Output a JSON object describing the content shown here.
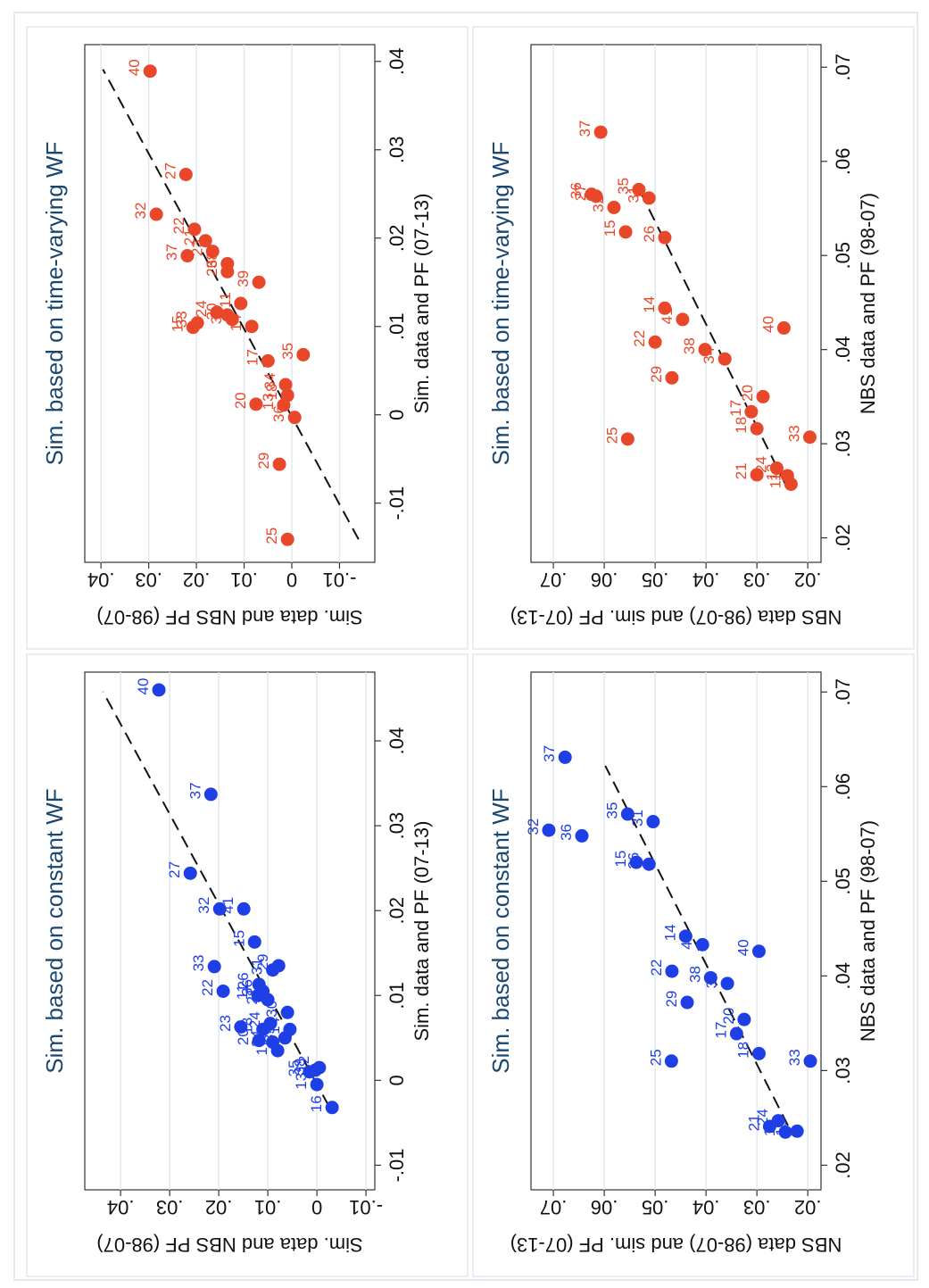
{
  "chart_data": [
    {
      "type": "scatter",
      "title": "Sim. based on constant WF",
      "x_label": "Sim. data and PF (07-13)",
      "y_label": "Sim. data and NBS PF (98-07)",
      "color": "#1f3fe6",
      "xlim": [
        -0.0129,
        0.0481
      ],
      "ylim": [
        -0.0118,
        0.0473
      ],
      "xticks": [
        {
          "value": -0.01,
          "label": "-.01"
        },
        0,
        {
          "value": 0.01,
          "label": ".01"
        },
        {
          "value": 0.02,
          "label": ".02"
        },
        {
          "value": 0.03,
          "label": ".03"
        },
        {
          "value": 0.04,
          "label": ".04"
        }
      ],
      "yticks": [
        {
          "value": -0.01,
          "label": "-.01"
        },
        0,
        {
          "value": 0.01,
          "label": ".01"
        },
        {
          "value": 0.02,
          "label": ".02"
        },
        {
          "value": 0.03,
          "label": ".03"
        },
        {
          "value": 0.04,
          "label": ".04"
        }
      ],
      "grid": true,
      "point_labels": [
        "40",
        "37",
        "27",
        "32",
        "41",
        "15",
        "33",
        "22",
        "26",
        "23",
        "31",
        "29",
        "36",
        "11",
        "20",
        "18",
        "24",
        "34",
        "17",
        "39",
        "14",
        "30",
        "21",
        "35",
        "38",
        "13",
        "12",
        "16"
      ],
      "x": [
        0.046,
        0.0337,
        0.0244,
        0.0202,
        0.0202,
        0.0163,
        0.0134,
        0.0105,
        0.0113,
        0.0063,
        0.013,
        0.0135,
        0.0105,
        0.01,
        0.0047,
        0.006,
        0.0067,
        0.0045,
        0.0035,
        0.005,
        0.006,
        0.008,
        0.0095,
        0.001,
        0.0012,
        -0.0005,
        0.0015,
        -0.0032
      ],
      "values": [
        0.0322,
        0.0216,
        0.0258,
        0.0198,
        0.0149,
        0.0127,
        0.0209,
        0.0191,
        0.0118,
        0.0155,
        0.009,
        0.0078,
        0.011,
        0.012,
        0.0118,
        0.011,
        0.0095,
        0.009,
        0.008,
        0.0065,
        0.0055,
        0.006,
        0.01,
        0.0015,
        0.0003,
        0.0,
        -0.0005,
        -0.0031
      ],
      "fit_x": [
        -0.003,
        0.0458
      ],
      "fit_y": [
        -0.0024,
        0.0436
      ]
    },
    {
      "type": "scatter",
      "title": "Sim. based on time-varying WF",
      "x_label": "Sim. data and PF (07-13)",
      "y_label": "Sim. data and NBS PF (98-07)",
      "color": "#e8472a",
      "xlim": [
        -0.0167,
        0.0419
      ],
      "ylim": [
        -0.0174,
        0.0434
      ],
      "xticks": [
        {
          "value": -0.01,
          "label": "-.01"
        },
        0,
        {
          "value": 0.01,
          "label": ".01"
        },
        {
          "value": 0.02,
          "label": ".02"
        },
        {
          "value": 0.03,
          "label": ".03"
        },
        {
          "value": 0.04,
          "label": ".04"
        }
      ],
      "yticks": [
        {
          "value": -0.01,
          "label": "-.01"
        },
        0,
        {
          "value": 0.01,
          "label": ".01"
        },
        {
          "value": 0.02,
          "label": ".02"
        },
        {
          "value": 0.03,
          "label": ".03"
        },
        {
          "value": 0.04,
          "label": ".04"
        }
      ],
      "grid": true,
      "point_labels": [
        "40",
        "27",
        "32",
        "22",
        "37",
        "21",
        "23",
        "38",
        "26",
        "39",
        "11",
        "24",
        "15",
        "33",
        "30",
        "31",
        "14",
        "17",
        "35",
        "20",
        "34",
        "18",
        "13",
        "36",
        "29",
        "25"
      ],
      "x": [
        0.0389,
        0.0272,
        0.0227,
        0.021,
        0.018,
        0.0197,
        0.0185,
        0.0171,
        0.0162,
        0.015,
        0.0126,
        0.0116,
        0.0099,
        0.0104,
        0.0113,
        0.0108,
        0.01,
        0.0061,
        0.0068,
        0.0012,
        0.0034,
        0.0022,
        0.0011,
        -0.0003,
        -0.0056,
        -0.0141
      ],
      "values": [
        0.0297,
        0.0222,
        0.0284,
        0.0204,
        0.0219,
        0.0181,
        0.0166,
        0.0135,
        0.0135,
        0.0069,
        0.0107,
        0.0157,
        0.0207,
        0.0198,
        0.0135,
        0.0125,
        0.0084,
        0.005,
        -0.0024,
        0.0075,
        0.0013,
        0.0009,
        0.0017,
        -0.0006,
        0.0026,
        0.0009
      ],
      "fit_x": [
        -0.0141,
        0.0391
      ],
      "fit_y": [
        -0.014,
        0.0396
      ]
    },
    {
      "type": "scatter",
      "title": "Sim. based on constant WF",
      "x_label": "NBS data and PF (98-07)",
      "y_label": "NBS data (98-07) and sim. PF (07-13)",
      "color": "#1f3fe6",
      "xlim": [
        0.0174,
        0.0721
      ],
      "ylim": [
        0.0174,
        0.0744
      ],
      "xticks": [
        {
          "value": 0.02,
          "label": ".02"
        },
        {
          "value": 0.03,
          "label": ".03"
        },
        {
          "value": 0.04,
          "label": ".04"
        },
        {
          "value": 0.05,
          "label": ".05"
        },
        {
          "value": 0.06,
          "label": ".06"
        },
        {
          "value": 0.07,
          "label": ".07"
        }
      ],
      "yticks": [
        {
          "value": 0.02,
          "label": ".02"
        },
        {
          "value": 0.03,
          "label": ".03"
        },
        {
          "value": 0.04,
          "label": ".04"
        },
        {
          "value": 0.05,
          "label": ".05"
        },
        {
          "value": 0.06,
          "label": ".06"
        },
        {
          "value": 0.07,
          "label": ".07"
        }
      ],
      "grid": true,
      "point_labels": [
        "37",
        "32",
        "36",
        "35",
        "31",
        "15",
        "26",
        "14",
        "41",
        "22",
        "40",
        "29",
        "38",
        "34",
        "20",
        "17",
        "18",
        "25",
        "33",
        "21",
        "24",
        "11",
        "13"
      ],
      "x": [
        0.0631,
        0.0554,
        0.0548,
        0.0571,
        0.0563,
        0.052,
        0.0518,
        0.0442,
        0.0433,
        0.0405,
        0.0426,
        0.0372,
        0.0398,
        0.0392,
        0.0354,
        0.0339,
        0.0318,
        0.031,
        0.031,
        0.0241,
        0.0247,
        0.0235,
        0.0236
      ],
      "values": [
        0.0677,
        0.0709,
        0.0644,
        0.0554,
        0.0504,
        0.0537,
        0.0512,
        0.044,
        0.0407,
        0.0467,
        0.0296,
        0.0437,
        0.0391,
        0.0358,
        0.0325,
        0.034,
        0.0296,
        0.0468,
        0.0195,
        0.0275,
        0.0258,
        0.0244,
        0.0221
      ],
      "fit_x": [
        0.0242,
        0.0622
      ],
      "fit_y": [
        0.0239,
        0.0598
      ]
    },
    {
      "type": "scatter",
      "title": "Sim. based on time-varying WF",
      "x_label": "NBS data and PF (98-07)",
      "y_label": "NBS data (98-07) and sim. PF (07-13)",
      "color": "#e8472a",
      "xlim": [
        0.0174,
        0.0724
      ],
      "ylim": [
        0.0174,
        0.0744
      ],
      "xticks": [
        {
          "value": 0.02,
          "label": ".02"
        },
        {
          "value": 0.03,
          "label": ".03"
        },
        {
          "value": 0.04,
          "label": ".04"
        },
        {
          "value": 0.05,
          "label": ".05"
        },
        {
          "value": 0.06,
          "label": ".06"
        },
        {
          "value": 0.07,
          "label": ".07"
        }
      ],
      "yticks": [
        {
          "value": 0.02,
          "label": ".02"
        },
        {
          "value": 0.03,
          "label": ".03"
        },
        {
          "value": 0.04,
          "label": ".04"
        },
        {
          "value": 0.05,
          "label": ".05"
        },
        {
          "value": 0.06,
          "label": ".06"
        },
        {
          "value": 0.07,
          "label": ".07"
        }
      ],
      "grid": true,
      "point_labels": [
        "37",
        "36",
        "27",
        "32",
        "15",
        "35",
        "31",
        "26",
        "14",
        "41",
        "22",
        "40",
        "38",
        "34",
        "29",
        "20",
        "17",
        "18",
        "25",
        "33",
        "21",
        "24",
        "13",
        "11"
      ],
      "x": [
        0.0631,
        0.0565,
        0.0563,
        0.0551,
        0.0525,
        0.057,
        0.0561,
        0.0519,
        0.0444,
        0.0432,
        0.0408,
        0.0423,
        0.04,
        0.039,
        0.037,
        0.035,
        0.0334,
        0.0316,
        0.0305,
        0.0307,
        0.0267,
        0.0274,
        0.0266,
        0.0257
      ],
      "values": [
        0.0607,
        0.0625,
        0.0616,
        0.0581,
        0.0558,
        0.0532,
        0.0512,
        0.0481,
        0.0481,
        0.0446,
        0.05,
        0.0247,
        0.0402,
        0.0363,
        0.0467,
        0.0288,
        0.0311,
        0.03,
        0.0554,
        0.0196,
        0.03,
        0.0261,
        0.024,
        0.0233
      ],
      "fit_x": [
        0.0257,
        0.0572
      ],
      "fit_y": [
        0.0244,
        0.0533
      ]
    }
  ]
}
